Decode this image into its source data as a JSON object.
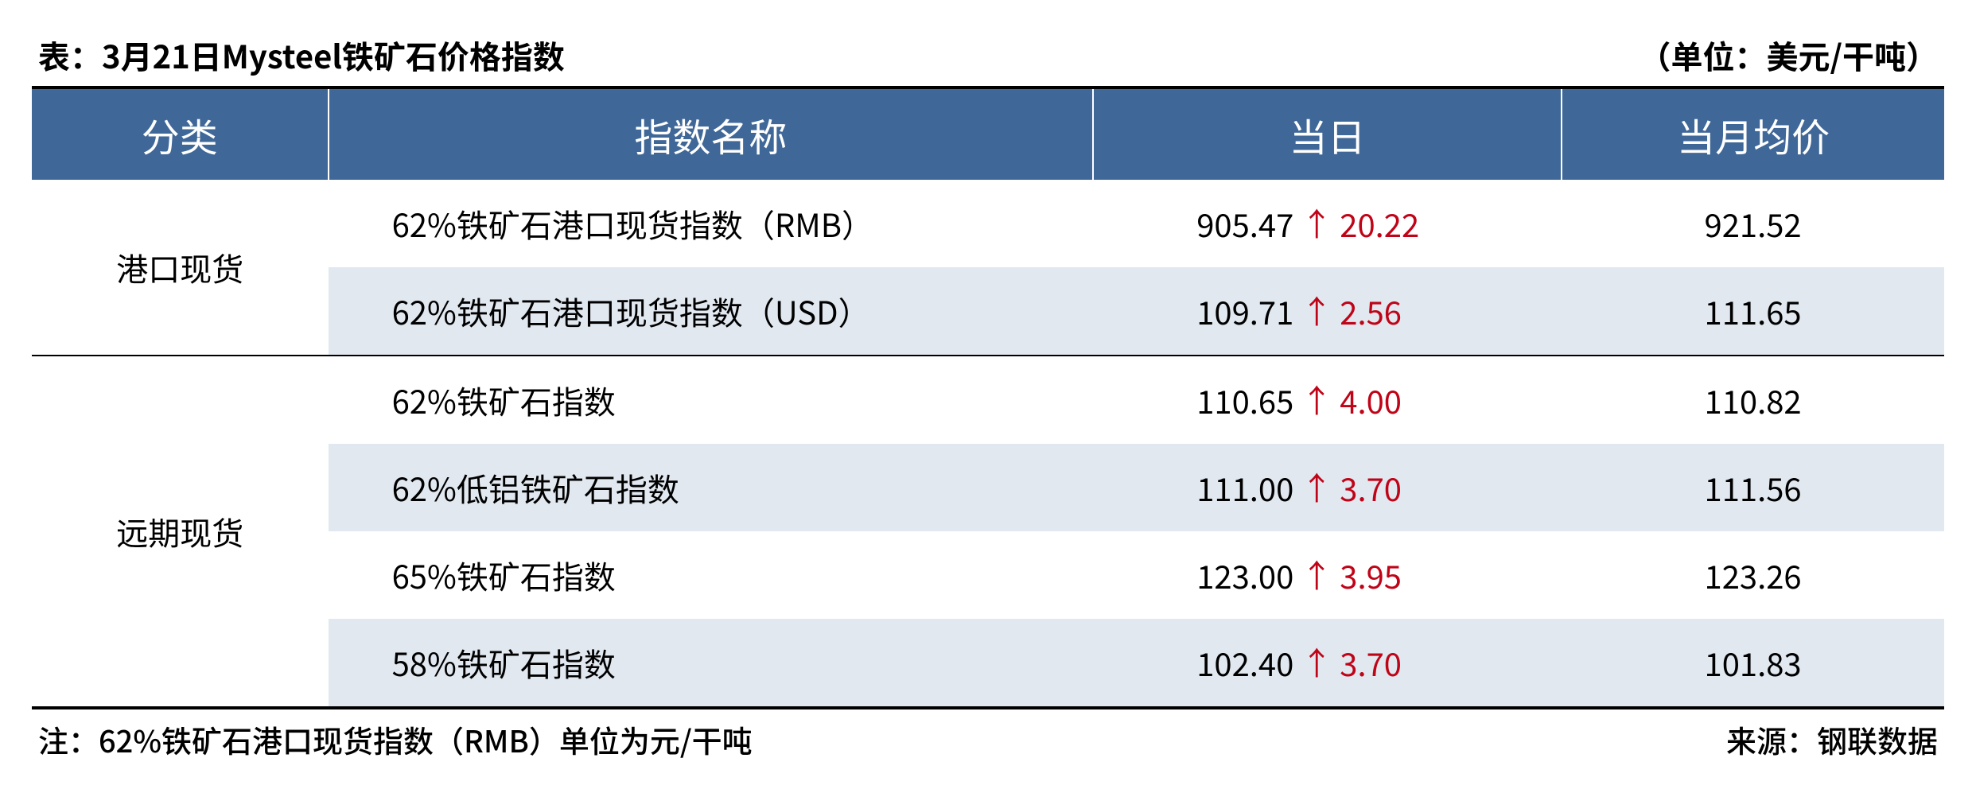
{
  "title": "表：3月21日Mysteel铁矿石价格指数",
  "unit": "（单位：美元/干吨）",
  "columns": [
    "分类",
    "指数名称",
    "当日",
    "当月均价"
  ],
  "groups": [
    {
      "category": "港口现货",
      "rows": [
        {
          "name": "62%铁矿石港口现货指数（RMB）",
          "today_value": "905.47",
          "today_delta": "20.22",
          "direction": "up",
          "month_avg": "921.52"
        },
        {
          "name": "62%铁矿石港口现货指数（USD）",
          "today_value": "109.71",
          "today_delta": "2.56",
          "direction": "up",
          "month_avg": "111.65"
        }
      ]
    },
    {
      "category": "远期现货",
      "rows": [
        {
          "name": "62%铁矿石指数",
          "today_value": "110.65",
          "today_delta": "4.00",
          "direction": "up",
          "month_avg": "110.82"
        },
        {
          "name": "62%低铝铁矿石指数",
          "today_value": "111.00",
          "today_delta": "3.70",
          "direction": "up",
          "month_avg": "111.56"
        },
        {
          "name": "65%铁矿石指数",
          "today_value": "123.00",
          "today_delta": "3.95",
          "direction": "up",
          "month_avg": "123.26"
        },
        {
          "name": "58%铁矿石指数",
          "today_value": "102.40",
          "today_delta": "3.70",
          "direction": "up",
          "month_avg": "101.83"
        }
      ]
    }
  ],
  "footnote": "注：62%铁矿石港口现货指数（RMB）单位为元/干吨",
  "source": "来源：钢联数据",
  "style": {
    "type": "table",
    "header_bg": "#3f6797",
    "header_fg": "#ffffff",
    "alt_row_bg": "#e1e8f0",
    "up_color": "#c00418",
    "border_color": "#000000",
    "title_fontsize": 40,
    "header_fontsize": 48,
    "body_fontsize": 40,
    "footer_fontsize": 38,
    "col_widths_pct": [
      15.5,
      40,
      24.5,
      20
    ],
    "arrow_up": "↑"
  }
}
